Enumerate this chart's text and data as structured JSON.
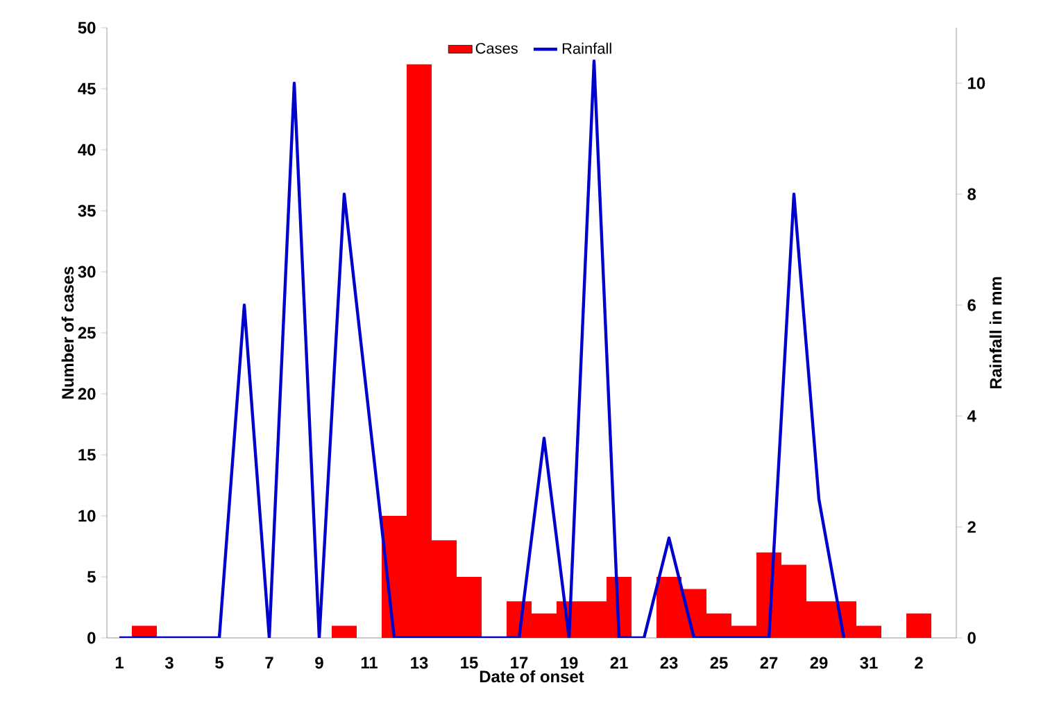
{
  "chart_data": {
    "type": "bar",
    "xlabel": "Date of onset",
    "ylabel": "Number of cases",
    "y2label": "Rainfall in mm",
    "categories": [
      "1",
      null,
      "3",
      null,
      "5",
      null,
      "7",
      null,
      "9",
      null,
      "11",
      null,
      "13",
      null,
      "15",
      null,
      "17",
      null,
      "19",
      null,
      "21",
      null,
      "23",
      null,
      "25",
      null,
      "27",
      null,
      "29",
      null,
      "31",
      null,
      "2",
      null
    ],
    "series": [
      {
        "name": "Cases",
        "color": "#ff0000",
        "values": [
          0,
          1,
          0,
          0,
          0,
          0,
          0,
          0,
          0,
          1,
          0,
          10,
          47,
          8,
          5,
          0,
          3,
          2,
          3,
          3,
          5,
          0,
          5,
          4,
          2,
          1,
          7,
          6,
          3,
          3,
          1,
          0,
          2,
          null
        ]
      },
      {
        "name": "Rainfall",
        "type": "line",
        "axis": "y2",
        "color": "#0000cc",
        "values": [
          0,
          0,
          0,
          0,
          0,
          6,
          0,
          10,
          0,
          8,
          4,
          0,
          0,
          0,
          0,
          0,
          0,
          3.6,
          0,
          10.4,
          0,
          0,
          1.8,
          0,
          0,
          0,
          0,
          8,
          2.5,
          0,
          null,
          null,
          null,
          null
        ]
      }
    ],
    "ylim": [
      0,
      50
    ],
    "yticks": [
      0,
      5,
      10,
      15,
      20,
      25,
      30,
      35,
      40,
      45,
      50
    ],
    "y2lim": [
      0,
      11
    ],
    "y2ticks": [
      0,
      2,
      4,
      6,
      8,
      10
    ],
    "legend": "top"
  }
}
